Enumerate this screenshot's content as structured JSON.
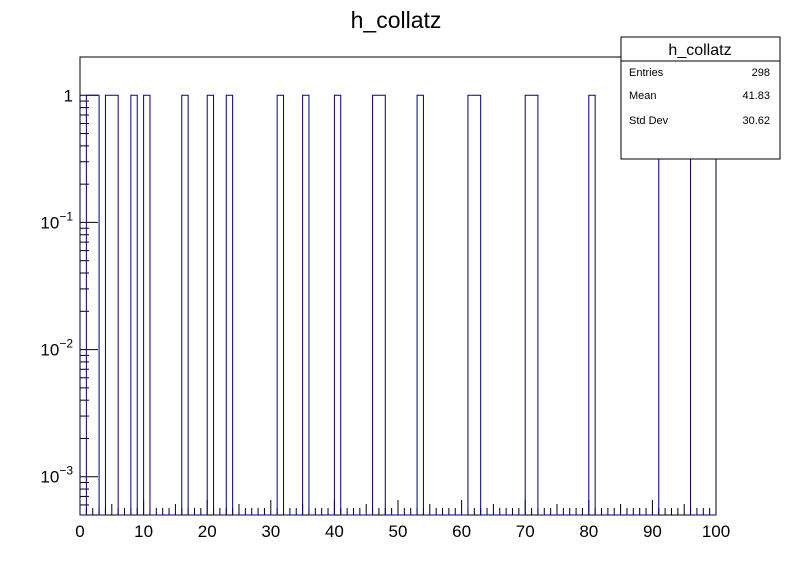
{
  "chart_data": {
    "type": "bar",
    "title": "h_collatz",
    "xlabel": "",
    "ylabel": "",
    "xlim": [
      0,
      100
    ],
    "ylim": [
      0.0005,
      2
    ],
    "y_scale": "log",
    "x_ticks": [
      "0",
      "10",
      "20",
      "30",
      "40",
      "50",
      "60",
      "70",
      "80",
      "90",
      "100"
    ],
    "y_ticks": [
      {
        "value": 1,
        "base": "1",
        "exp": ""
      },
      {
        "value": 0.1,
        "base": "10",
        "exp": "−1"
      },
      {
        "value": 0.01,
        "base": "10",
        "exp": "−2"
      },
      {
        "value": 0.001,
        "base": "10",
        "exp": "−3"
      }
    ],
    "bin_width": 1,
    "series": [
      {
        "values_by_bin_low_edge": {
          "1": 1,
          "2": 1,
          "4": 1,
          "5": 1,
          "8": 1,
          "10": 1,
          "16": 1,
          "20": 1,
          "23": 1,
          "31": 1,
          "35": 1,
          "40": 1,
          "46": 1,
          "47": 1,
          "53": 1,
          "61": 1,
          "62": 1,
          "70": 1,
          "71": 1,
          "80": 1,
          "91": 1,
          "92": 1,
          "93": 1,
          "94": 1,
          "95": 1
        }
      }
    ],
    "color": "#000080",
    "stats_box": {
      "title": "h_collatz",
      "rows": [
        {
          "label": "Entries",
          "value": "298"
        },
        {
          "label": "Mean",
          "value": "41.83"
        },
        {
          "label": "Std Dev",
          "value": "30.62"
        }
      ],
      "placement": "top-right"
    }
  }
}
